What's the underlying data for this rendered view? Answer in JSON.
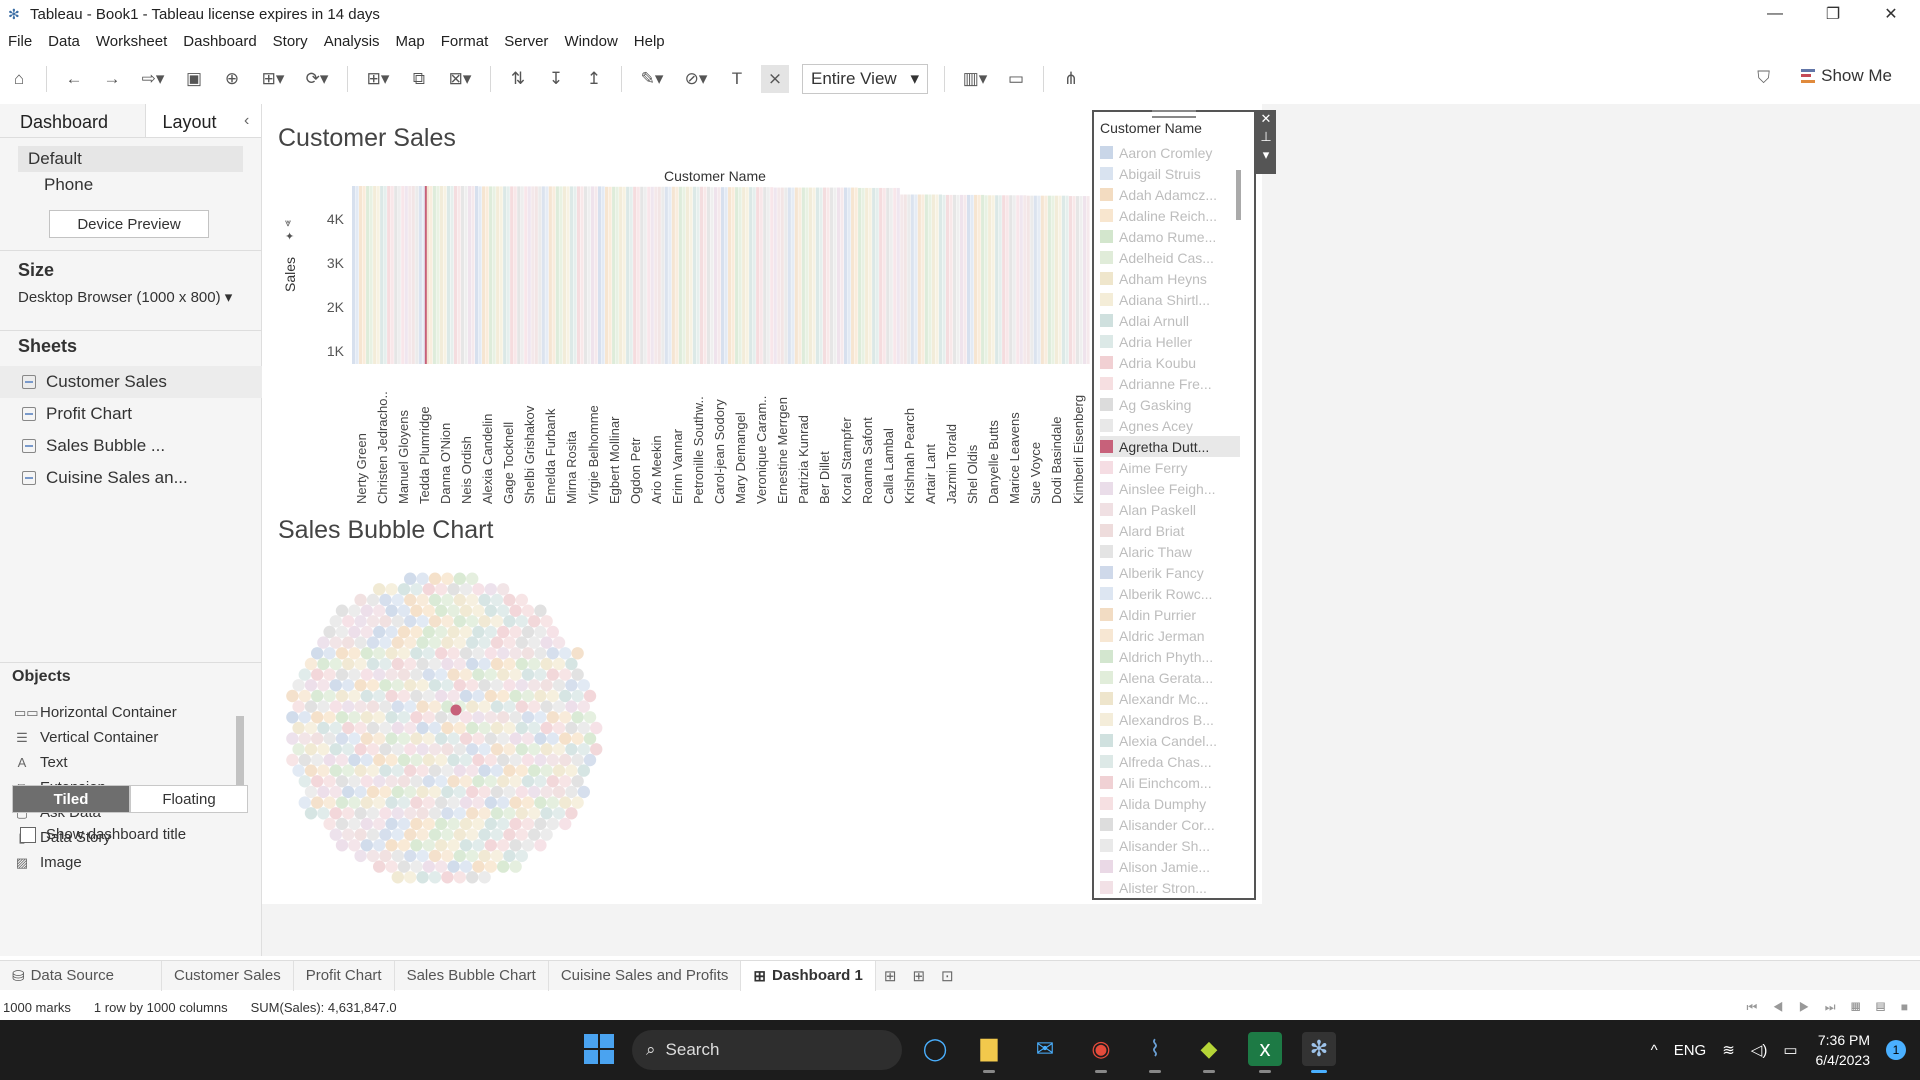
{
  "window": {
    "title": "Tableau - Book1 - Tableau license expires in 14 days"
  },
  "menu": [
    "File",
    "Data",
    "Worksheet",
    "Dashboard",
    "Story",
    "Analysis",
    "Map",
    "Format",
    "Server",
    "Window",
    "Help"
  ],
  "toolbar": {
    "view_mode": "Entire View",
    "show_me": "Show Me"
  },
  "left_panel": {
    "tabs": {
      "dashboard": "Dashboard",
      "layout": "Layout"
    },
    "devices": {
      "default": "Default",
      "phone": "Phone",
      "preview_button": "Device Preview"
    },
    "size": {
      "heading": "Size",
      "value": "Desktop Browser (1000 x 800)"
    },
    "sheets": {
      "heading": "Sheets",
      "items": [
        "Customer Sales",
        "Profit Chart",
        "Sales Bubble ...",
        "Cuisine Sales an..."
      ]
    },
    "objects": {
      "heading": "Objects",
      "items": [
        {
          "label": "Horizontal Container",
          "icon": "horizontal-container-icon"
        },
        {
          "label": "Vertical Container",
          "icon": "vertical-container-icon"
        },
        {
          "label": "Text",
          "icon": "text-icon"
        },
        {
          "label": "Extension",
          "icon": "extension-icon"
        },
        {
          "label": "Ask Data",
          "icon": "ask-data-icon"
        },
        {
          "label": "Data Story",
          "icon": "data-story-icon"
        },
        {
          "label": "Image",
          "icon": "image-icon"
        }
      ]
    },
    "layout_mode": {
      "tiled": "Tiled",
      "floating": "Floating"
    },
    "show_title": "Show dashboard title"
  },
  "dashboard": {
    "customer_sales": {
      "title": "Customer Sales",
      "axis_title": "Customer Name",
      "y_label": "Sales",
      "y_ticks": [
        "4K",
        "3K",
        "2K",
        "1K"
      ]
    },
    "bubble_chart": {
      "title": "Sales Bubble Chart"
    },
    "legend": {
      "title": "Customer Name",
      "highlighted": "Agretha Dutt...",
      "items": [
        {
          "name": "Aaron Cromley",
          "color": "#c9d6e8"
        },
        {
          "name": "Abigail Struis",
          "color": "#d9e3f0"
        },
        {
          "name": "Adah Adamcz...",
          "color": "#f3dcc1"
        },
        {
          "name": "Adaline Reich...",
          "color": "#f8e6cf"
        },
        {
          "name": "Adamo Rume...",
          "color": "#d3e6cd"
        },
        {
          "name": "Adelheid Cas...",
          "color": "#e0ecd9"
        },
        {
          "name": "Adham Heyns",
          "color": "#efe6cc"
        },
        {
          "name": "Adiana Shirtl...",
          "color": "#f4edd8"
        },
        {
          "name": "Adlai Arnull",
          "color": "#cfe0de"
        },
        {
          "name": "Adria Heller",
          "color": "#dce9e7"
        },
        {
          "name": "Adria Koubu",
          "color": "#f1d0d3"
        },
        {
          "name": "Adrianne Fre...",
          "color": "#f6dfe1"
        },
        {
          "name": "Ag Gasking",
          "color": "#dcdcdc"
        },
        {
          "name": "Agnes Acey",
          "color": "#e8e8e8"
        },
        {
          "name": "Agretha Dutt...",
          "color": "#c7617a"
        },
        {
          "name": "Aime Ferry",
          "color": "#f5dde3"
        },
        {
          "name": "Ainslee Feigh...",
          "color": "#eadde9"
        },
        {
          "name": "Alan Paskell",
          "color": "#f0e0e3"
        },
        {
          "name": "Alard Briat",
          "color": "#eedcdc"
        },
        {
          "name": "Alaric Thaw",
          "color": "#e4e4e4"
        },
        {
          "name": "Alberik Fancy",
          "color": "#cfd9ea"
        },
        {
          "name": "Alberik Rowc...",
          "color": "#dde6f2"
        },
        {
          "name": "Aldin Purrier",
          "color": "#f2dcc3"
        },
        {
          "name": "Aldric Jerman",
          "color": "#f7e7d3"
        },
        {
          "name": "Aldrich Phyth...",
          "color": "#d3e6cf"
        },
        {
          "name": "Alena Gerata...",
          "color": "#e1edda"
        },
        {
          "name": "Alexandr Mc...",
          "color": "#eee5cc"
        },
        {
          "name": "Alexandros B...",
          "color": "#f4edda"
        },
        {
          "name": "Alexia Candel...",
          "color": "#d0e1df"
        },
        {
          "name": "Alfreda Chas...",
          "color": "#dde9e7"
        },
        {
          "name": "Ali Einchcom...",
          "color": "#f0d1d4"
        },
        {
          "name": "Alida Dumphy",
          "color": "#f6e0e2"
        },
        {
          "name": "Alisander Cor...",
          "color": "#dddddd"
        },
        {
          "name": "Alisander Sh...",
          "color": "#e9e9e9"
        },
        {
          "name": "Alison Jamie...",
          "color": "#ead9e6"
        },
        {
          "name": "Alister Stron...",
          "color": "#f2e1e6"
        }
      ]
    }
  },
  "chart_data": {
    "type": "bar",
    "title": "Customer Sales",
    "xlabel": "Customer Name",
    "ylabel": "Sales",
    "ylim": [
      0,
      4600
    ],
    "categories": [
      "Nerty Green",
      "Christen Jedracho..",
      "Manuel Gloyens",
      "Tedda Plumridge",
      "Danna O'Nion",
      "Neis Ordish",
      "Alexia Candelin",
      "Gage Tocknell",
      "Shelbi Grishakov",
      "Emelda Furbank",
      "Mirna Rosita",
      "Virgie Belhomme",
      "Egbert Mollinar",
      "Ogdon Petr",
      "Ario Meekin",
      "Erinn Vannar",
      "Petronille Southw..",
      "Carol-jean Sodory",
      "Mary Demangel",
      "Veronique Caram..",
      "Ernestine Merrgen",
      "Patrizia Kunrad",
      "Ber Dillet",
      "Koral Stampfer",
      "Roanna Safont",
      "Calla Lambal",
      "Krishnah Pearch",
      "Artair Lant",
      "Jazmin Torald",
      "Shel Oldis",
      "Danyelle Butts",
      "Marice Leavens",
      "Sue Voyce",
      "Dodi Basindale",
      "Kimberli Eisenberg"
    ],
    "values": [
      4600,
      4600,
      4600,
      4600,
      4600,
      4600,
      4590,
      4590,
      4590,
      4590,
      4590,
      4590,
      4580,
      4580,
      4580,
      4580,
      4580,
      4570,
      4570,
      4570,
      4560,
      4560,
      4560,
      4560,
      4550,
      4550,
      4380,
      4380,
      4370,
      4370,
      4360,
      4360,
      4350,
      4350,
      4340
    ],
    "highlight": "Tedda Plumridge",
    "grid": false
  },
  "sheet_tabs": [
    "Data Source",
    "Customer Sales",
    "Profit Chart",
    "Sales Bubble Chart",
    "Cuisine Sales and Profits",
    "Dashboard 1"
  ],
  "status": {
    "marks": "1000 marks",
    "rows": "1 row by 1000 columns",
    "sum": "SUM(Sales): 4,631,847.0"
  },
  "taskbar": {
    "search": "Search",
    "lang": "ENG",
    "time": "7:36 PM",
    "date": "6/4/2023",
    "notifications": "1"
  }
}
